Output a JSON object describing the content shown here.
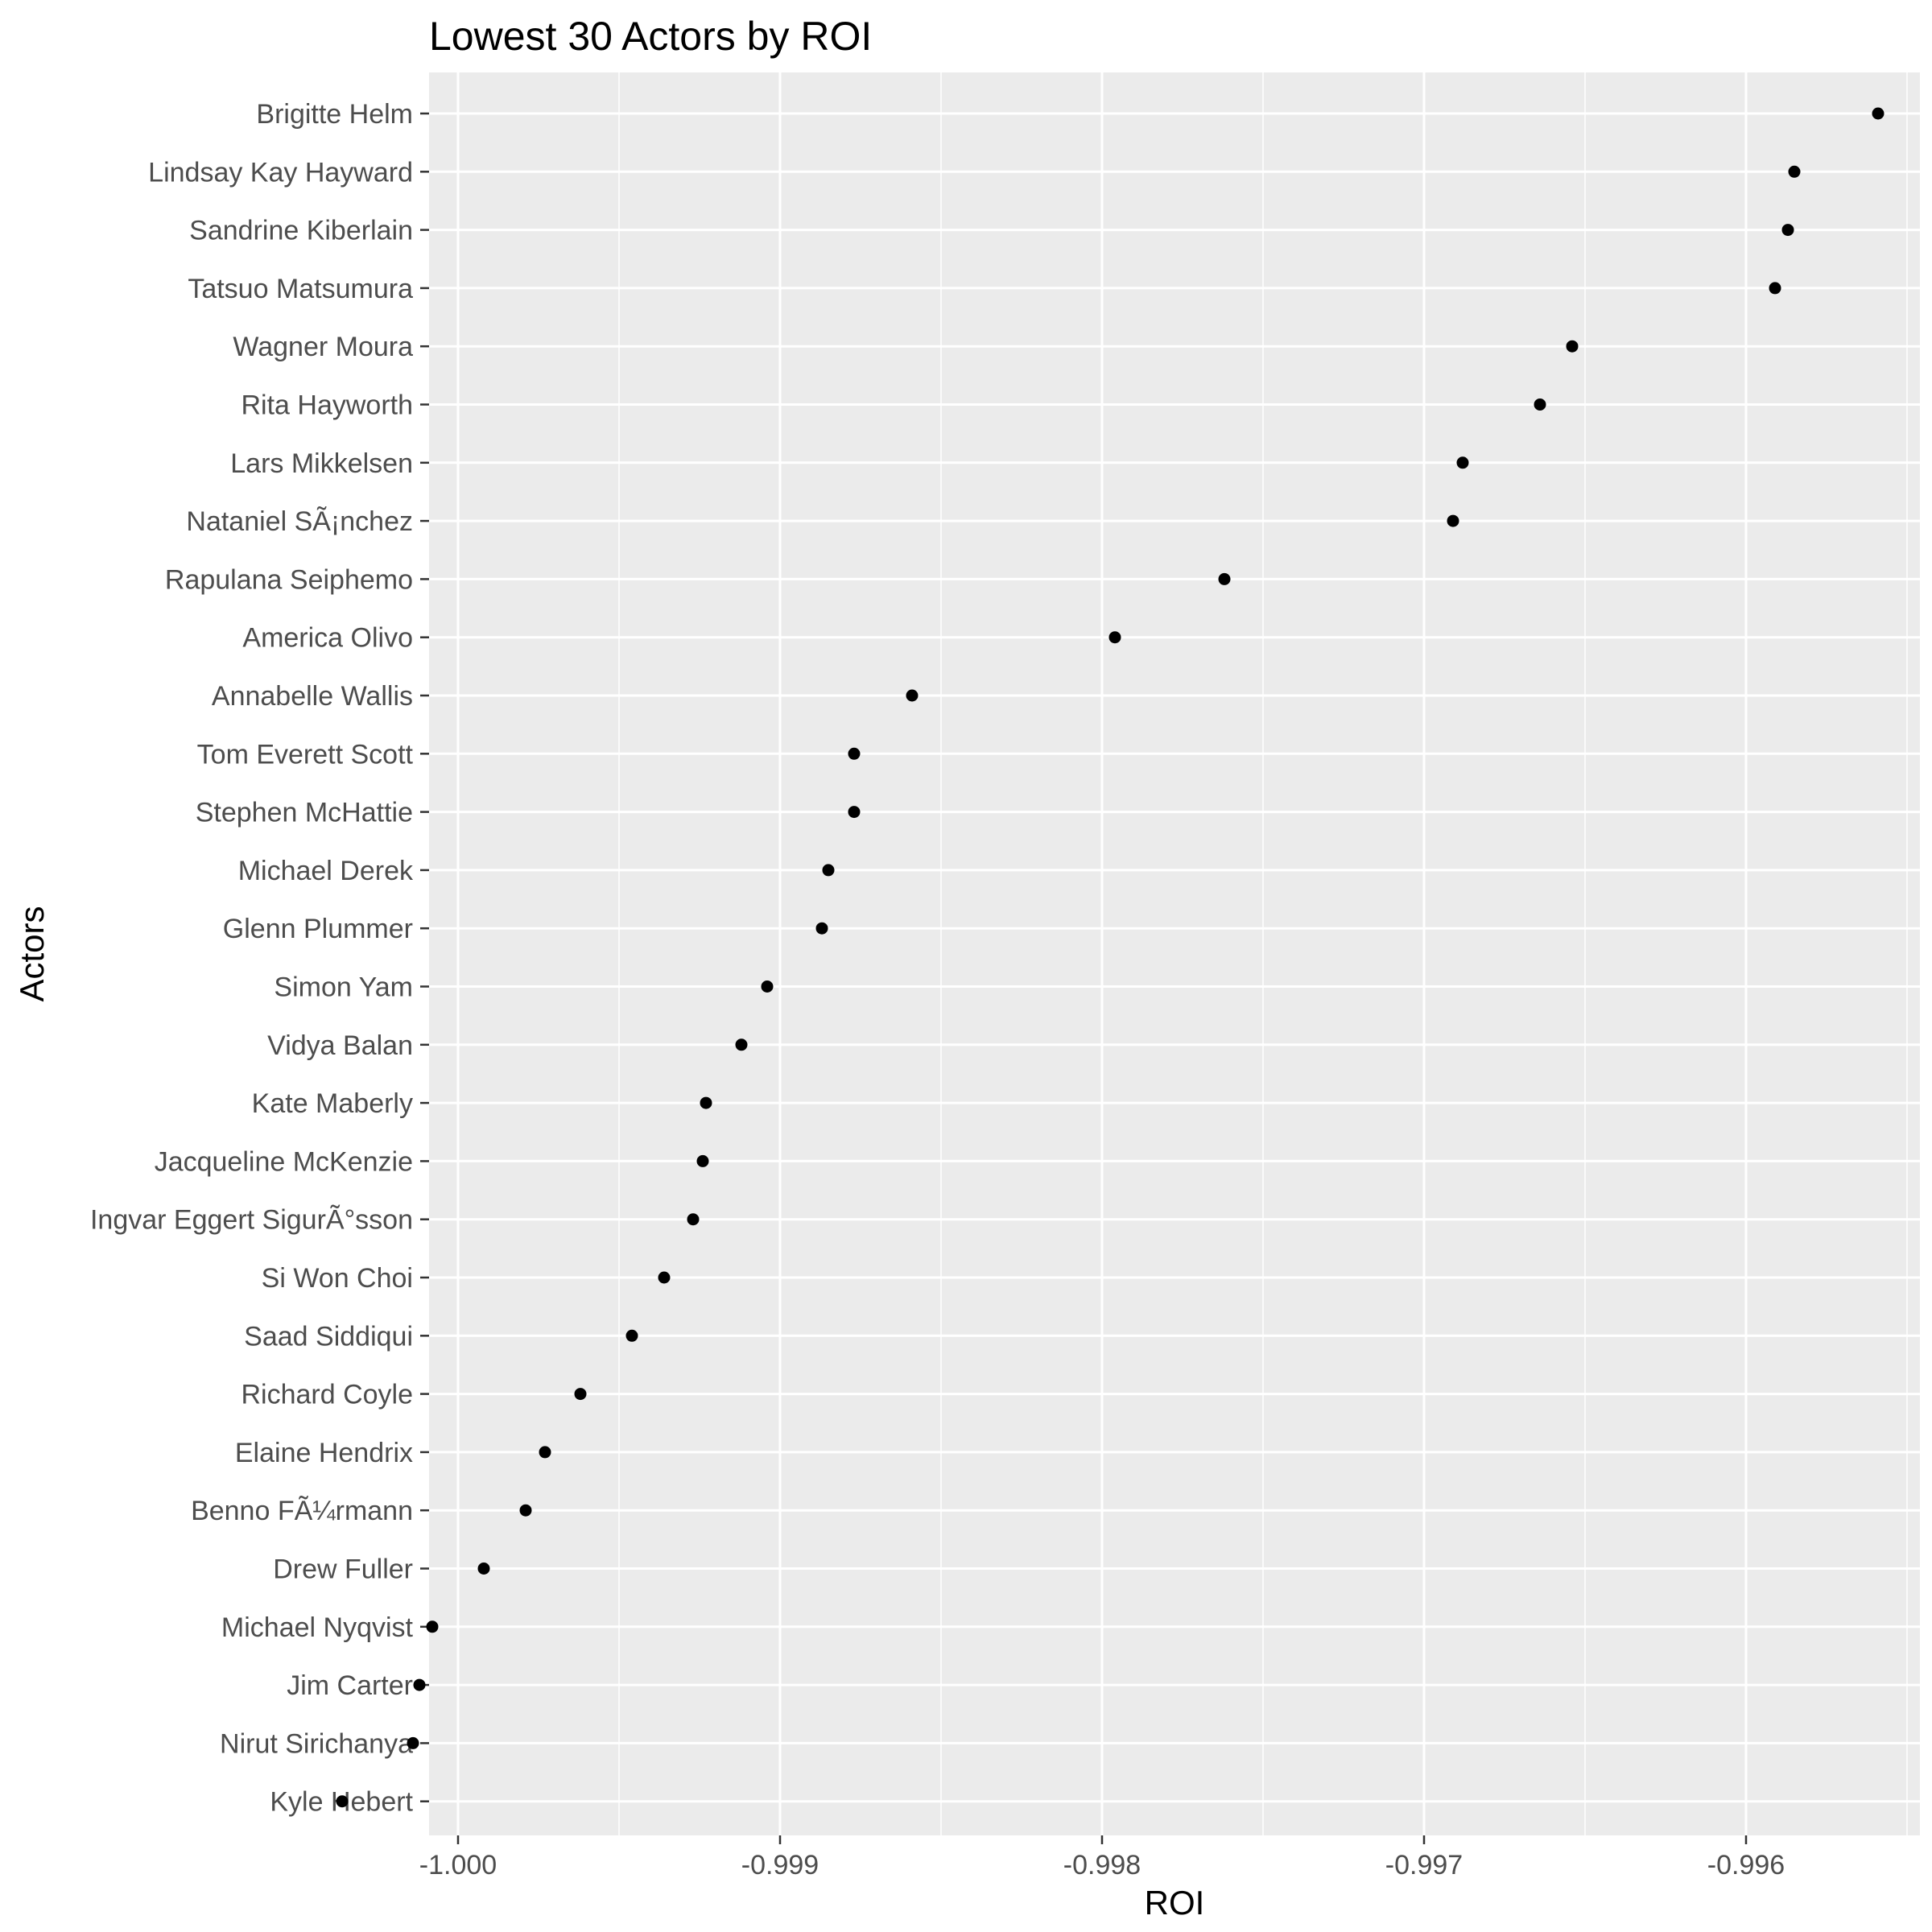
{
  "chart_data": {
    "type": "scatter",
    "title": "Lowest 30 Actors by ROI",
    "xlabel": "ROI",
    "ylabel": "Actors",
    "xlim": [
      -1.00009,
      -0.99546
    ],
    "x_ticks": [
      -1.0,
      -0.999,
      -0.998,
      -0.997,
      -0.996
    ],
    "x_tick_labels": [
      "-1.000",
      "-0.999",
      "-0.998",
      "-0.997",
      "-0.996"
    ],
    "grid": true,
    "legend": "none",
    "colors": {
      "panel": "#ebebeb",
      "grid": "#ffffff",
      "point": "#000000",
      "tick_text": "#4d4d4d"
    },
    "categories": [
      "Brigitte Helm",
      "Lindsay Kay Hayward",
      "Sandrine Kiberlain",
      "Tatsuo Matsumura",
      "Wagner Moura",
      "Rita Hayworth",
      "Lars Mikkelsen",
      "Nataniel SÃ¡nchez",
      "Rapulana Seiphemo",
      "America Olivo",
      "Annabelle Wallis",
      "Tom Everett Scott",
      "Stephen McHattie",
      "Michael Derek",
      "Glenn Plummer",
      "Simon Yam",
      "Vidya Balan",
      "Kate Maberly",
      "Jacqueline McKenzie",
      "Ingvar Eggert SigurÃ°sson",
      "Si Won Choi",
      "Saad Siddiqui",
      "Richard Coyle",
      "Elaine Hendrix",
      "Benno FÃ¼rmann",
      "Drew Fuller",
      "Michael Nyqvist",
      "Jim Carter",
      "Nirut Sirichanya",
      "Kyle Hebert"
    ],
    "values": [
      -0.99559,
      -0.99585,
      -0.99587,
      -0.99591,
      -0.99654,
      -0.99664,
      -0.99688,
      -0.99691,
      -0.99762,
      -0.99796,
      -0.99859,
      -0.99877,
      -0.99877,
      -0.99885,
      -0.99887,
      -0.99904,
      -0.99912,
      -0.99923,
      -0.99924,
      -0.99927,
      -0.99936,
      -0.99946,
      -0.99962,
      -0.99973,
      -0.99979,
      -0.99992,
      -1.00008,
      -1.00012,
      -1.00014,
      -1.00036
    ]
  }
}
